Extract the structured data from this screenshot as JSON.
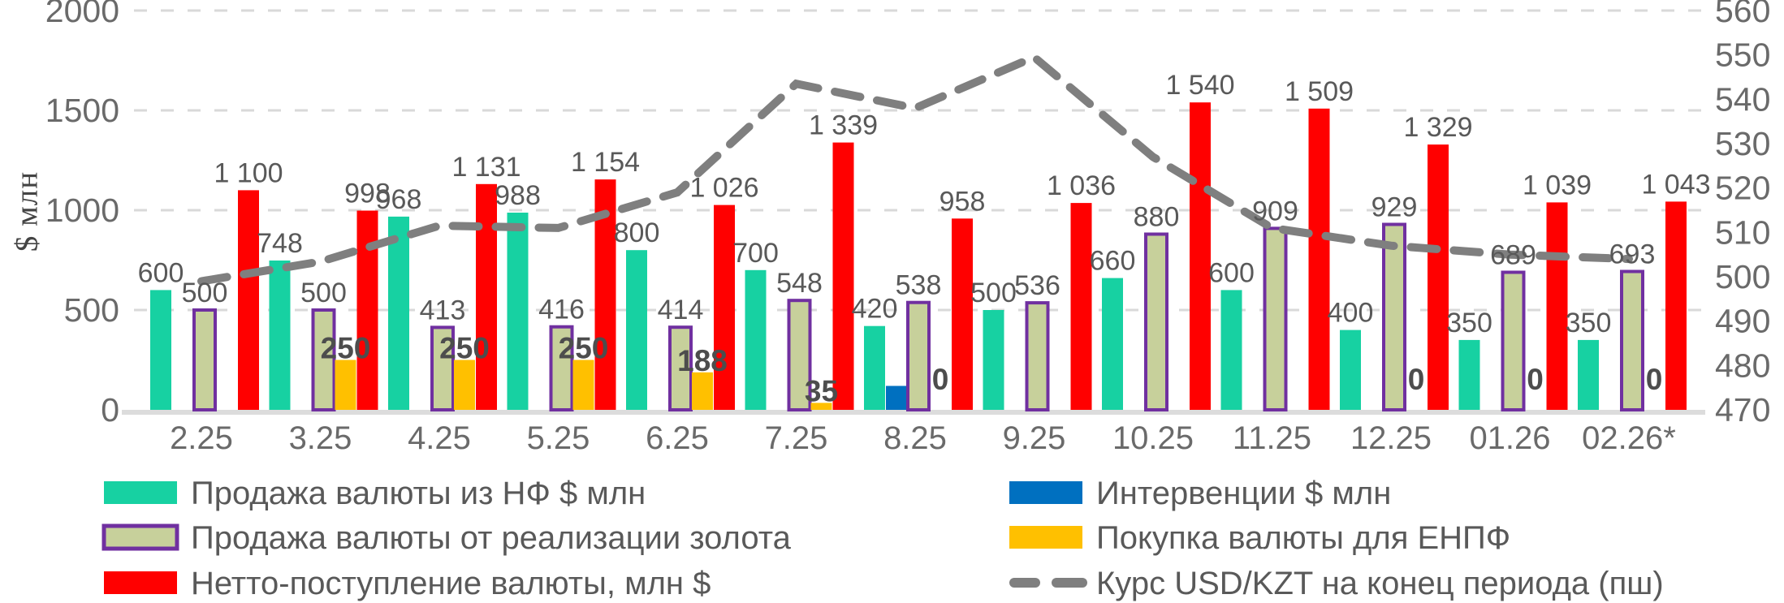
{
  "page": {
    "background": "#ffffff"
  },
  "chart_data": {
    "type": "combo",
    "title": "",
    "categories": [
      "2.25",
      "3.25",
      "4.25",
      "5.25",
      "6.25",
      "7.25",
      "8.25",
      "9.25",
      "10.25",
      "11.25",
      "12.25",
      "01.26",
      "02.26*"
    ],
    "left_axis": {
      "title": "$ млн",
      "min": 0,
      "max": 2000,
      "ticks": [
        0,
        500,
        1000,
        1500,
        2000
      ]
    },
    "right_axis": {
      "min": 470,
      "max": 560,
      "ticks": [
        470,
        480,
        490,
        500,
        510,
        520,
        530,
        540,
        550,
        560
      ]
    },
    "grid": {
      "color": "#d9d9d9",
      "baseline_color": "#dcdcdc"
    },
    "label_color": "#595959",
    "bold_label_color": "#4d4d4d",
    "series": [
      {
        "name": "Продажа валюты из НФ $ млн",
        "kind": "bar",
        "slot": 0,
        "color": "#17d1a2",
        "show_labels": true,
        "bold_labels": false,
        "values": [
          600,
          748,
          968,
          988,
          800,
          700,
          420,
          500,
          660,
          600,
          400,
          350,
          350
        ]
      },
      {
        "name": "Интервенции $ млн",
        "kind": "bar",
        "slot": 1,
        "color": "#0070c0",
        "show_labels": false,
        "bold_labels": false,
        "values": [
          null,
          null,
          null,
          null,
          null,
          null,
          120,
          null,
          null,
          null,
          null,
          null,
          null
        ]
      },
      {
        "name": "Продажа валюты от реализации золота",
        "kind": "bar",
        "slot": 2,
        "color": "#c7d09b",
        "border": "#7030a0",
        "show_labels": true,
        "bold_labels": false,
        "values": [
          500,
          500,
          413,
          416,
          414,
          548,
          538,
          536,
          880,
          909,
          929,
          689,
          693
        ]
      },
      {
        "name": "Покупка валюты для ЕНПФ",
        "kind": "bar",
        "slot": 3,
        "color": "#ffc000",
        "show_labels": true,
        "bold_labels": true,
        "values": [
          null,
          250,
          250,
          250,
          188,
          35,
          0,
          null,
          null,
          null,
          0,
          0,
          0
        ]
      },
      {
        "name": "Нетто-поступление валюты, млн $",
        "kind": "bar",
        "slot": 4,
        "color": "#ff0000",
        "show_labels": true,
        "bold_labels": false,
        "values": [
          1100,
          998,
          1131,
          1154,
          1026,
          1339,
          958,
          1036,
          1540,
          1509,
          1329,
          1039,
          1043
        ]
      },
      {
        "name": "Курс USD/KZT на конец периода (пш)",
        "kind": "line",
        "axis": "right",
        "color": "#7f7f7f",
        "values": [
          499,
          503.4,
          511.5,
          511,
          519,
          543.5,
          538,
          549.5,
          527,
          511,
          507,
          505,
          504
        ]
      }
    ],
    "legend": {
      "left_column": [
        0,
        2,
        4
      ],
      "right_column": [
        1,
        3,
        5
      ]
    }
  }
}
